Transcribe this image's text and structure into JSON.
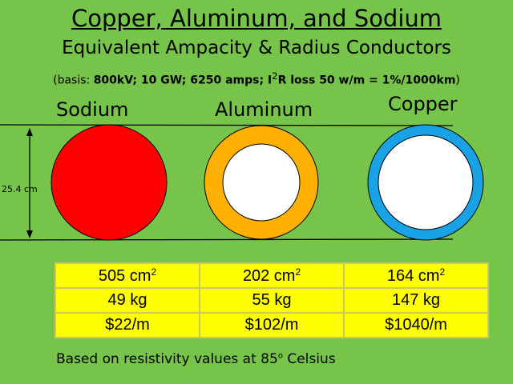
{
  "header": {
    "title": "Copper, Aluminum, and Sodium",
    "subtitle": "Equivalent Ampacity & Radius Conductors",
    "basis_prefix": "(basis: ",
    "basis_bold_1": "800kV; 10 GW; 6250 amps; I",
    "basis_sup": "2",
    "basis_bold_2": "R loss 50 w/m = 1%/1000km",
    "basis_suffix": ")"
  },
  "dimension": {
    "label": "25.4 cm"
  },
  "conductors": [
    {
      "name": "Sodium",
      "fill": "#ff0000",
      "ring": "#ff0000",
      "core": "#ff0000"
    },
    {
      "name": "Aluminum",
      "ring": "#ffb000",
      "core": "#ffffff"
    },
    {
      "name": "Copper",
      "ring": "#1aa2e6",
      "core": "#ffffff"
    }
  ],
  "table": {
    "area_unit": "cm",
    "area_sup": "2",
    "areas": [
      "505",
      "202",
      "164"
    ],
    "masses": [
      "49 kg",
      "55 kg",
      "147 kg"
    ],
    "costs": [
      "$22/m",
      "$102/m",
      "$1040/m"
    ]
  },
  "footnote": {
    "before": "Based on resistivity values at 85",
    "sup": "o",
    "after": " Celsius"
  },
  "colors": {
    "background": "#77c44a",
    "table": "#ffff00"
  }
}
